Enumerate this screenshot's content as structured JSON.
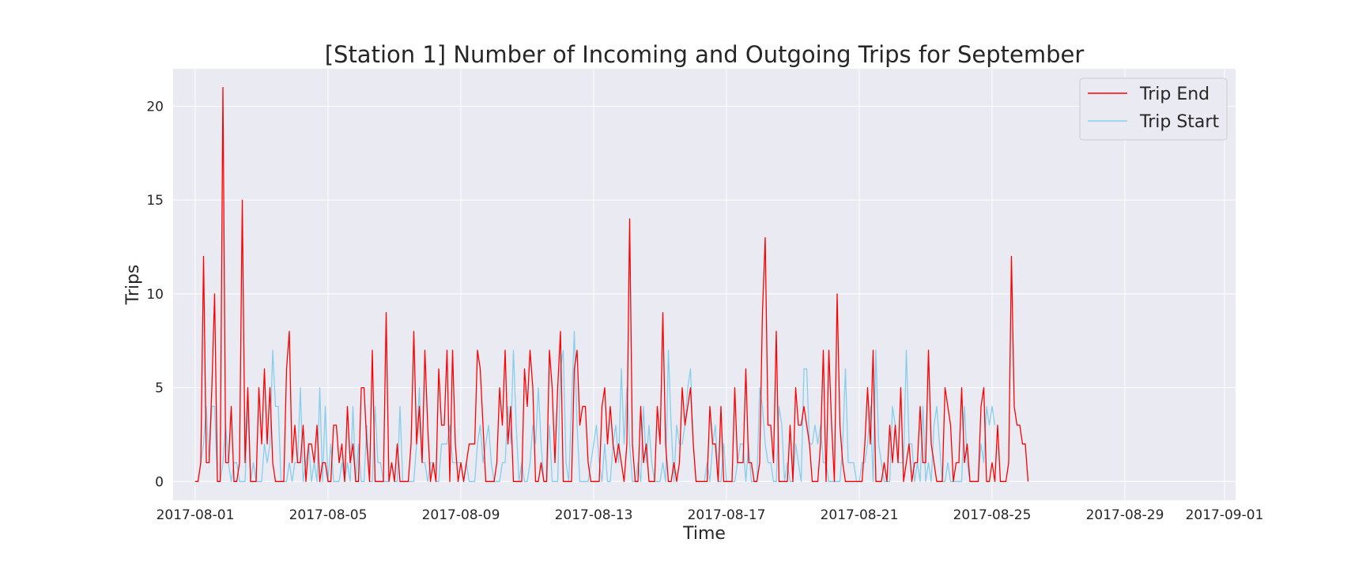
{
  "chart_data": {
    "type": "line",
    "title": "[Station 1] Number of Incoming and Outgoing Trips for September",
    "xlabel": "Time",
    "ylabel": "Trips",
    "x_start": "2017-08-01T00:00",
    "x_step_hours": 2,
    "xlim": [
      "2017-07-31T08:00",
      "2017-09-01T08:00"
    ],
    "ylim": [
      -1,
      22
    ],
    "x_ticks": [
      "2017-08-01",
      "2017-08-05",
      "2017-08-09",
      "2017-08-13",
      "2017-08-17",
      "2017-08-21",
      "2017-08-25",
      "2017-08-29",
      "2017-09-01"
    ],
    "y_ticks": [
      0,
      5,
      10,
      15,
      20
    ],
    "grid": true,
    "legend_position": "top-right",
    "background": "#eaeaf2",
    "series": [
      {
        "name": "Trip End",
        "color": "#ff0000",
        "values": [
          0,
          0,
          1,
          12,
          1,
          1,
          5,
          10,
          0,
          0,
          21,
          1,
          1,
          4,
          0,
          0,
          1,
          15,
          1,
          5,
          0,
          0,
          0,
          5,
          2,
          6,
          2,
          5,
          1,
          0,
          0,
          0,
          0,
          6,
          8,
          1,
          3,
          1,
          1,
          3,
          0,
          2,
          2,
          1,
          3,
          0,
          1,
          1,
          0,
          0,
          3,
          3,
          1,
          2,
          0,
          4,
          1,
          2,
          0,
          0,
          5,
          5,
          2,
          0,
          7,
          0,
          0,
          0,
          0,
          9,
          0,
          1,
          0,
          2,
          0,
          0,
          0,
          0,
          2,
          8,
          2,
          4,
          1,
          7,
          3,
          0,
          1,
          0,
          6,
          3,
          3,
          7,
          0,
          7,
          2,
          0,
          1,
          0,
          1,
          2,
          2,
          2,
          7,
          6,
          3,
          0,
          0,
          0,
          0,
          1,
          5,
          3,
          7,
          2,
          4,
          0,
          0,
          0,
          0,
          6,
          4,
          7,
          5,
          0,
          0,
          1,
          0,
          0,
          7,
          5,
          1,
          5,
          8,
          0,
          0,
          0,
          0,
          6,
          7,
          3,
          4,
          4,
          1,
          0,
          0,
          0,
          0,
          4,
          5,
          2,
          4,
          2,
          1,
          2,
          1,
          0,
          2,
          14,
          2,
          0,
          0,
          4,
          1,
          2,
          0,
          0,
          0,
          4,
          2,
          9,
          2,
          0,
          0,
          1,
          0,
          1,
          5,
          3,
          4,
          5,
          2,
          0,
          0,
          0,
          0,
          0,
          4,
          2,
          2,
          0,
          4,
          0,
          0,
          0,
          0,
          5,
          1,
          1,
          1,
          6,
          1,
          1,
          0,
          0,
          1,
          9,
          13,
          3,
          3,
          1,
          8,
          0,
          0,
          0,
          0,
          3,
          0,
          5,
          3,
          3,
          4,
          3,
          2,
          0,
          0,
          0,
          2,
          7,
          0,
          7,
          3,
          0,
          10,
          3,
          1,
          0,
          0,
          0,
          0,
          0,
          0,
          0,
          2,
          5,
          2,
          7,
          0,
          0,
          0,
          1,
          0,
          3,
          1,
          3,
          1,
          5,
          0,
          1,
          2,
          0,
          1,
          1,
          4,
          1,
          1,
          7,
          2,
          1,
          0,
          0,
          0,
          5,
          4,
          3,
          0,
          1,
          1,
          5,
          1,
          2,
          0,
          0,
          0,
          0,
          4,
          5,
          0,
          0,
          1,
          0,
          3,
          0,
          0,
          0,
          1,
          12,
          4,
          3,
          3,
          2,
          2,
          0
        ]
      },
      {
        "name": "Trip Start",
        "color": "#87ceeb",
        "values": [
          0,
          0,
          1,
          2,
          4,
          1,
          4,
          4,
          0,
          0,
          1,
          3,
          1,
          0,
          1,
          1,
          0,
          0,
          0,
          4,
          0,
          1,
          0,
          0,
          0,
          2,
          1,
          2,
          7,
          4,
          4,
          0,
          0,
          0,
          1,
          0,
          1,
          1,
          5,
          0,
          1,
          2,
          0,
          1,
          0,
          5,
          0,
          4,
          0,
          2,
          0,
          0,
          0,
          1,
          0,
          1,
          0,
          4,
          0,
          2,
          0,
          0,
          3,
          0,
          0,
          4,
          1,
          1,
          0,
          0,
          0,
          1,
          0,
          0,
          4,
          0,
          0,
          0,
          0,
          0,
          2,
          5,
          1,
          1,
          0,
          1,
          1,
          0,
          0,
          2,
          2,
          2,
          3,
          1,
          1,
          1,
          1,
          0,
          1,
          0,
          0,
          0,
          2,
          3,
          1,
          2,
          3,
          1,
          0,
          0,
          0,
          1,
          1,
          4,
          2,
          7,
          3,
          0,
          1,
          0,
          0,
          1,
          3,
          2,
          5,
          2,
          0,
          0,
          3,
          0,
          0,
          0,
          6,
          7,
          1,
          0,
          4,
          8,
          3,
          0,
          0,
          0,
          0,
          1,
          2,
          3,
          1,
          0,
          2,
          0,
          0,
          2,
          3,
          1,
          6,
          2,
          5,
          2,
          0,
          0,
          1,
          0,
          4,
          1,
          3,
          1,
          0,
          0,
          0,
          1,
          0,
          7,
          3,
          0,
          3,
          2,
          2,
          3,
          5,
          6,
          2,
          0,
          0,
          0,
          0,
          1,
          0,
          2,
          3,
          0,
          0,
          2,
          0,
          0,
          0,
          0,
          1,
          2,
          2,
          0,
          2,
          0,
          0,
          0,
          5,
          4,
          2,
          1,
          1,
          0,
          0,
          4,
          3,
          0,
          1,
          0,
          0,
          2,
          1,
          0,
          6,
          6,
          2,
          2,
          3,
          2,
          3,
          1,
          1,
          0,
          0,
          0,
          0,
          0,
          2,
          6,
          1,
          1,
          1,
          0,
          0,
          1,
          1,
          2,
          4,
          0,
          7,
          2,
          1,
          0,
          0,
          0,
          4,
          3,
          1,
          1,
          1,
          7,
          2,
          2,
          0,
          1,
          0,
          4,
          0,
          1,
          0,
          3,
          4,
          2,
          0,
          0,
          1,
          0,
          0,
          0,
          0,
          0,
          4,
          1,
          0,
          0,
          0,
          0,
          2,
          1,
          4,
          3,
          4,
          3
        ]
      }
    ]
  }
}
